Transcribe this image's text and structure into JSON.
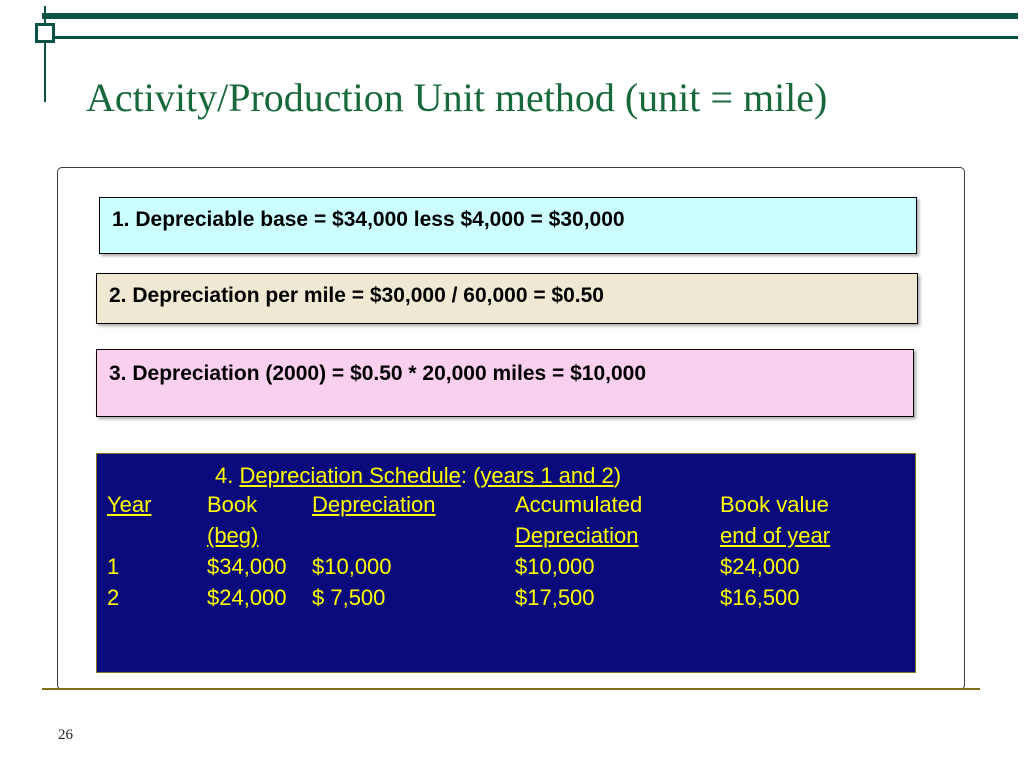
{
  "slide": {
    "title": "Activity/Production Unit method (unit = mile)",
    "page_number": "26"
  },
  "steps": {
    "step1": "1. Depreciable base = $34,000 less $4,000 = $30,000",
    "step2": "2. Depreciation per mile = $30,000 / 60,000  = $0.50",
    "step3": "3. Depreciation (2000) = $0.50 * 20,000 miles = $10,000"
  },
  "schedule": {
    "heading_prefix": "4. ",
    "heading_title": "Depreciation Schedule",
    "heading_mid": ": (",
    "heading_sub": "years 1 and 2",
    "heading_suffix": ")",
    "header_row1": [
      "Year",
      "Book",
      "Depreciation",
      "Accumulated",
      "Book value"
    ],
    "header_row2": [
      "",
      "(beg)",
      "",
      "Depreciation",
      "end of year"
    ],
    "rows": [
      [
        "1",
        "$34,000",
        "$10,000",
        "$10,000",
        "$24,000"
      ],
      [
        "2",
        "$24,000",
        "$ 7,500",
        "$17,500",
        "$16,500"
      ]
    ]
  },
  "colors": {
    "accent_green": "#0b5345",
    "title_green": "#17693c",
    "step1_bg": "#ccffff",
    "step2_bg": "#efe9d3",
    "step3_bg": "#fad0ee",
    "schedule_bg": "#0a0a7d",
    "schedule_text": "#ffff00",
    "bottom_rule": "#7e6e14"
  }
}
